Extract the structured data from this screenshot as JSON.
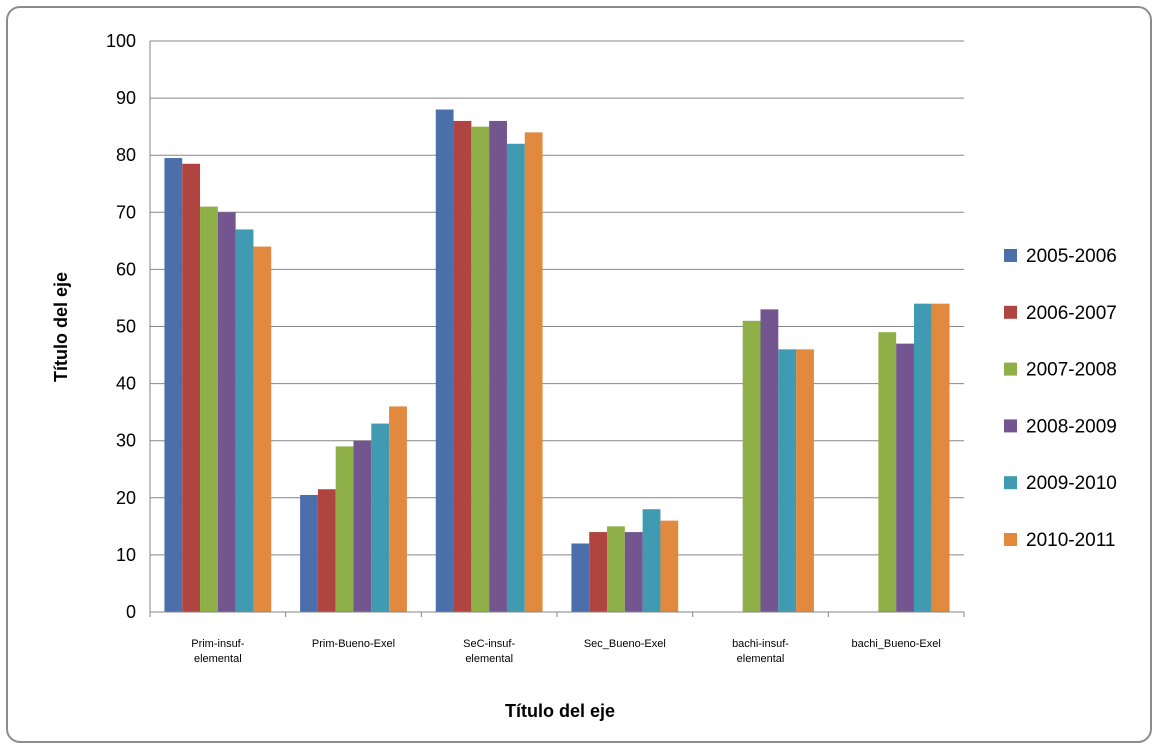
{
  "chart_data": {
    "type": "bar",
    "categories": [
      [
        "Prim-insuf-",
        "elemental"
      ],
      [
        "Prim-Bueno-Exel"
      ],
      [
        "SeC-insuf-",
        "elemental"
      ],
      [
        "Sec_Bueno-Exel"
      ],
      [
        "bachi-insuf-",
        "elemental"
      ],
      [
        "bachi_Bueno-Exel"
      ]
    ],
    "series": [
      {
        "name": "2005-2006",
        "color": "#4a6fab",
        "values": [
          79.5,
          20.5,
          88,
          12,
          null,
          null
        ]
      },
      {
        "name": "2006-2007",
        "color": "#b04440",
        "values": [
          78.5,
          21.5,
          86,
          14,
          null,
          null
        ]
      },
      {
        "name": "2007-2008",
        "color": "#8faf48",
        "values": [
          71,
          29,
          85,
          15,
          51,
          49
        ]
      },
      {
        "name": "2008-2009",
        "color": "#735690",
        "values": [
          70,
          30,
          86,
          14,
          53,
          47
        ]
      },
      {
        "name": "2009-2010",
        "color": "#3f9ab2",
        "values": [
          67,
          33,
          82,
          18,
          46,
          54
        ]
      },
      {
        "name": "2010-2011",
        "color": "#e0893f",
        "values": [
          64,
          36,
          84,
          16,
          46,
          54
        ]
      }
    ],
    "xlabel": "Título del eje",
    "ylabel": "Título del eje",
    "ylim": [
      0,
      100
    ],
    "yticks": [
      "0",
      "10",
      "20",
      "30",
      "40",
      "50",
      "60",
      "70",
      "80",
      "90",
      "100"
    ],
    "grid": true,
    "legend": "right"
  }
}
